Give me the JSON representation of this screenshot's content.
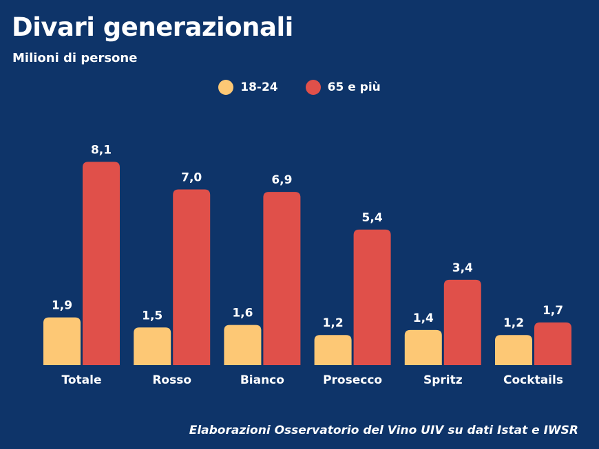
{
  "colors": {
    "background": "#0e3469",
    "series_1": "#fdc875",
    "series_2": "#e0504a"
  },
  "chart_data": {
    "type": "bar",
    "title": "Divari generazionali",
    "subtitle": "Milioni di persone",
    "categories": [
      "Totale",
      "Rosso",
      "Bianco",
      "Prosecco",
      "Spritz",
      "Cocktails"
    ],
    "series": [
      {
        "name": "18-24",
        "values": [
          1.9,
          1.5,
          1.6,
          1.2,
          1.4,
          1.2
        ],
        "labels": [
          "1,9",
          "1,5",
          "1,6",
          "1,2",
          "1,4",
          "1,2"
        ]
      },
      {
        "name": "65 e più",
        "values": [
          8.1,
          7.0,
          6.9,
          5.4,
          3.4,
          1.7
        ],
        "labels": [
          "8,1",
          "7,0",
          "6,9",
          "5,4",
          "3,4",
          "1,7"
        ]
      }
    ],
    "legend": "top-center",
    "grid": false,
    "source": "Elaborazioni Osservatorio del Vino UIV su dati Istat e IWSR"
  }
}
